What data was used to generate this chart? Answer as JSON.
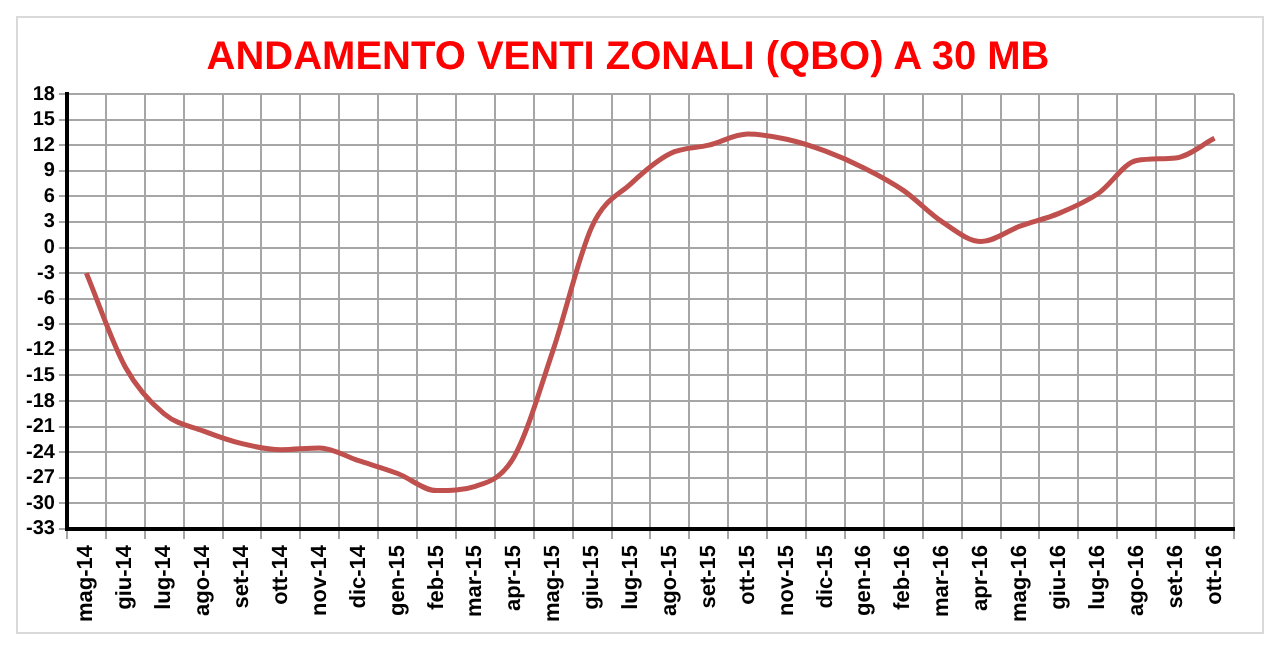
{
  "chart_data": {
    "type": "line",
    "title": "ANDAMENTO VENTI ZONALI (QBO) A 30 MB",
    "categories": [
      "mag-14",
      "giu-14",
      "lug-14",
      "ago-14",
      "set-14",
      "ott-14",
      "nov-14",
      "dic-14",
      "gen-15",
      "feb-15",
      "mar-15",
      "apr-15",
      "mag-15",
      "giu-15",
      "lug-15",
      "ago-15",
      "set-15",
      "ott-15",
      "nov-15",
      "dic-15",
      "gen-16",
      "feb-16",
      "mar-16",
      "apr-16",
      "mag-16",
      "giu-16",
      "lug-16",
      "ago-16",
      "set-16",
      "ott-16"
    ],
    "series": [
      {
        "color": "#c0504d",
        "values": [
          -3,
          -14,
          -19.5,
          -21.5,
          -23,
          -23.7,
          -23.5,
          -25,
          -26.5,
          -28.5,
          -28,
          -24.5,
          -12,
          2.5,
          7.5,
          11,
          12,
          13.3,
          12.7,
          11.3,
          9.3,
          6.7,
          3,
          0.7,
          2.5,
          4,
          6.3,
          10.2,
          10.5,
          12.8
        ]
      }
    ],
    "ylim": [
      -33,
      18
    ],
    "yticks": [
      18,
      15,
      12,
      9,
      6,
      3,
      0,
      -3,
      -6,
      -9,
      -12,
      -15,
      -18,
      -21,
      -24,
      -27,
      -30,
      -33
    ],
    "grid": true,
    "legend": false,
    "marker": "none",
    "line_style": "solid"
  }
}
